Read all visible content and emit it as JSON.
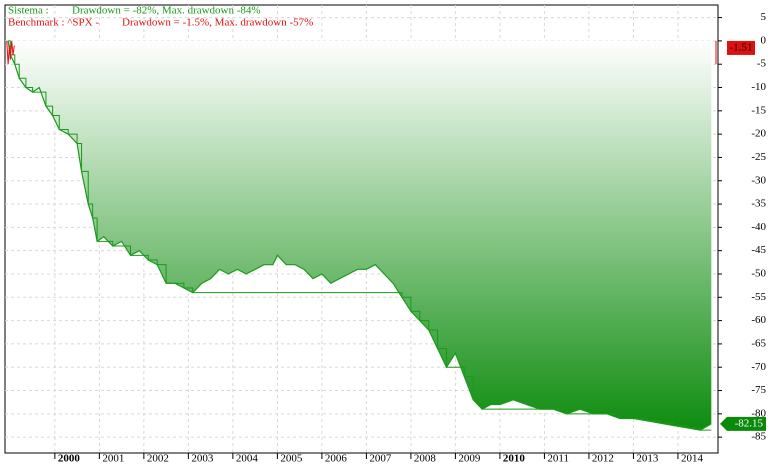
{
  "chart_data": {
    "type": "area",
    "legend": [
      {
        "name": "Sistema :",
        "text": "Drawdown = -82%, Max. drawdown -84%",
        "color": "#1a9a1a"
      },
      {
        "name": "Benchmark : ^SPX -",
        "text": "Drawdown = -1.5%, Max. drawdown -57%",
        "color": "#e01010"
      }
    ],
    "xlim": [
      1998.88,
      2014.9
    ],
    "xticks": [
      2000,
      2001,
      2002,
      2003,
      2004,
      2005,
      2006,
      2007,
      2008,
      2009,
      2010,
      2011,
      2012,
      2013,
      2014
    ],
    "ylim": [
      -88.4,
      7.7
    ],
    "yticks": [
      5,
      0,
      -5,
      -10,
      -15,
      -20,
      -25,
      -30,
      -35,
      -40,
      -45,
      -50,
      -55,
      -60,
      -65,
      -70,
      -75,
      -80,
      -85
    ],
    "grid": true,
    "x": [
      1998.95,
      1999.0,
      1999.1,
      1999.2,
      1999.35,
      1999.5,
      1999.65,
      1999.8,
      1999.95,
      2000.1,
      2000.3,
      2000.5,
      2000.6,
      2000.75,
      2000.85,
      2000.95,
      2001.1,
      2001.3,
      2001.5,
      2001.7,
      2001.9,
      2002.1,
      2002.3,
      2002.5,
      2002.7,
      2002.9,
      2003.1,
      2003.3,
      2003.5,
      2003.7,
      2003.9,
      2004.1,
      2004.3,
      2004.5,
      2004.7,
      2004.9,
      2005.0,
      2005.2,
      2005.4,
      2005.6,
      2005.8,
      2006.0,
      2006.2,
      2006.4,
      2006.6,
      2006.8,
      2007.0,
      2007.2,
      2007.4,
      2007.6,
      2007.8,
      2008.0,
      2008.2,
      2008.4,
      2008.6,
      2008.8,
      2009.0,
      2009.2,
      2009.4,
      2009.6,
      2009.8,
      2010.0,
      2010.3,
      2010.6,
      2010.9,
      2011.2,
      2011.5,
      2011.8,
      2012.1,
      2012.4,
      2012.7,
      2013.0,
      2013.3,
      2013.6,
      2013.9,
      2014.2,
      2014.5,
      2014.75
    ],
    "series": [
      {
        "color": "#1a9a1a",
        "fill": "#0a8a0a",
        "values": [
          0,
          -3,
          -5,
          -8,
          -10,
          -11,
          -10,
          -14,
          -16,
          -19,
          -20,
          -22,
          -28,
          -35,
          -38,
          -43,
          -42,
          -44,
          -43,
          -46,
          -45,
          -47,
          -48,
          -52,
          -52,
          -53,
          -54,
          -52,
          -51,
          -49,
          -50,
          -49,
          -50,
          -49,
          -48,
          -48,
          -46,
          -48,
          -48,
          -49,
          -51,
          -50,
          -52,
          -51,
          -50,
          -49,
          -49,
          -48,
          -50,
          -52,
          -55,
          -58,
          -60,
          -62,
          -66,
          -70,
          -67,
          -72,
          -77,
          -79,
          -78,
          -78,
          -77,
          -78,
          -79,
          -79,
          -80,
          -79,
          -80,
          -80,
          -81,
          -81,
          -81.5,
          -82,
          -82.5,
          -83,
          -83.5,
          -82.15
        ]
      },
      {
        "color": "#1a9a1a",
        "step": true,
        "values": [
          0,
          -3,
          -5,
          -8,
          -10,
          -11,
          -11,
          -14,
          -16,
          -19,
          -20,
          -22,
          -28,
          -35,
          -38,
          -43,
          -43,
          -44,
          -44,
          -46,
          -46,
          -47,
          -48,
          -52,
          -52,
          -53,
          -54,
          -54,
          -54,
          -54,
          -54,
          -54,
          -54,
          -54,
          -54,
          -54,
          -54,
          -54,
          -54,
          -54,
          -54,
          -54,
          -54,
          -54,
          -54,
          -54,
          -54,
          -54,
          -54,
          -54,
          -55,
          -58,
          -60,
          -62,
          -66,
          -70,
          -70,
          -72,
          -77,
          -79,
          -79,
          -79,
          -79,
          -79,
          -79,
          -79,
          -80,
          -80,
          -80,
          -80,
          -81,
          -81,
          -81.5,
          -82,
          -82.5,
          -83,
          -83.5,
          -83.5
        ]
      }
    ],
    "benchmark": {
      "color": "#e01010",
      "x": [
        1998.92,
        1998.95,
        1998.98,
        1999.0,
        1999.03,
        1999.06,
        1999.09
      ],
      "values": [
        0,
        -5,
        -1,
        -4,
        0,
        -3,
        -1
      ],
      "last": -1.51
    }
  }
}
